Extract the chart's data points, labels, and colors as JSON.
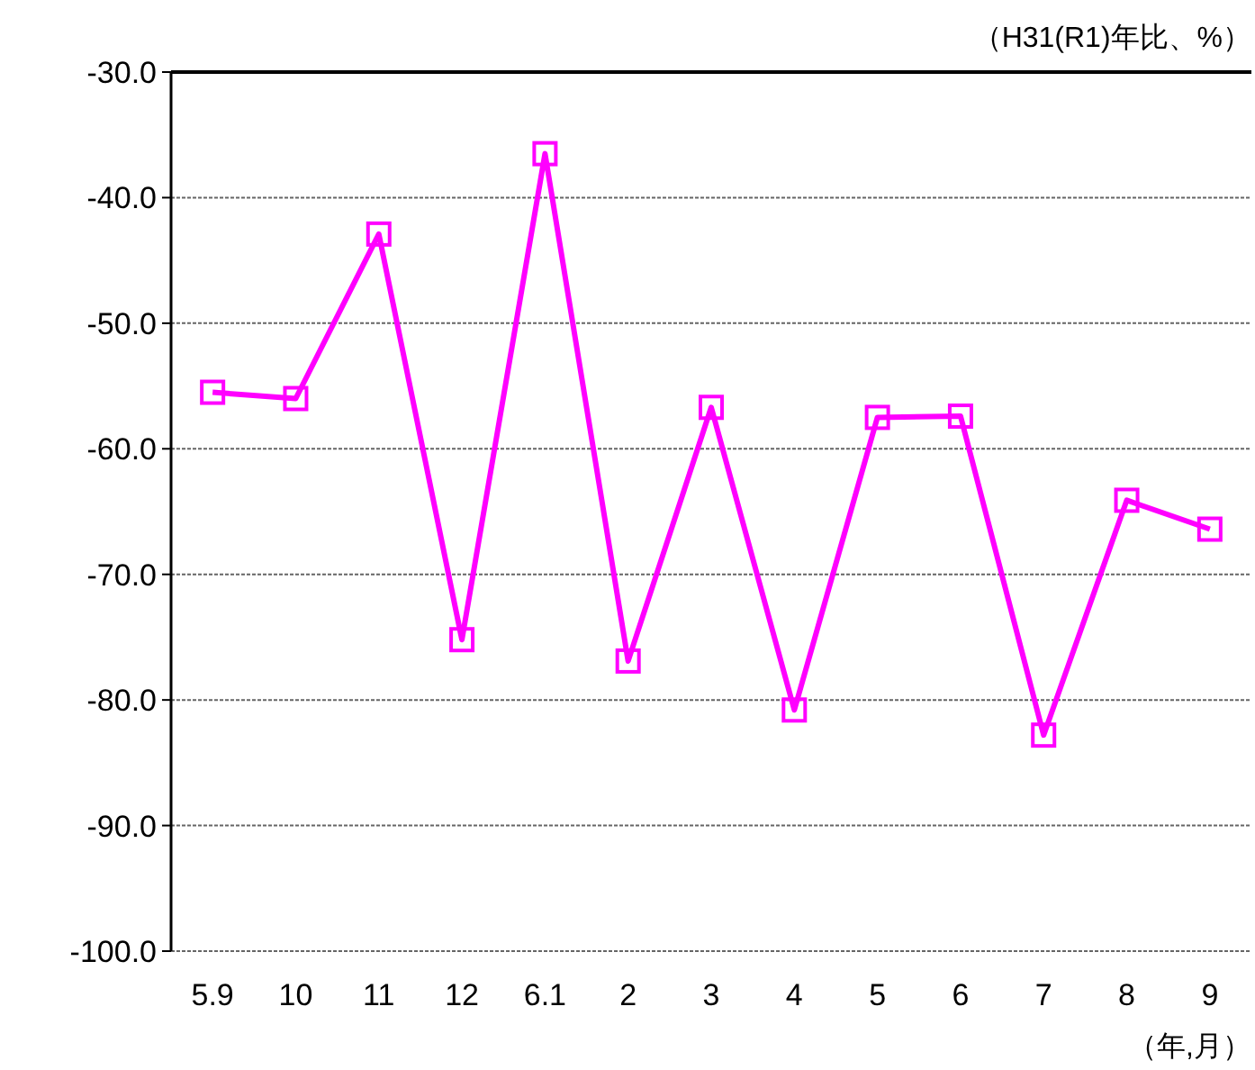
{
  "chart_data": {
    "type": "line",
    "ylabel": "（H31(R1)年比、%）",
    "xlabel": "（年,月）",
    "categories": [
      "5.9",
      "10",
      "11",
      "12",
      "6.1",
      "2",
      "3",
      "4",
      "5",
      "6",
      "7",
      "8",
      "9"
    ],
    "series": [
      {
        "color": "#ff00ff",
        "values": [
          -55.5,
          -56.0,
          -42.9,
          -75.2,
          -36.5,
          -76.9,
          -56.7,
          -80.8,
          -57.5,
          -57.4,
          -82.8,
          -64.1,
          -66.4
        ]
      }
    ],
    "ylim": [
      -100,
      -30
    ],
    "yticks": [
      {
        "value": -100,
        "label": "-100.0"
      },
      {
        "value": -90,
        "label": "-90.0"
      },
      {
        "value": -80,
        "label": "-80.0"
      },
      {
        "value": -70,
        "label": "-70.0"
      },
      {
        "value": -60,
        "label": "-60.0"
      },
      {
        "value": -50,
        "label": "-50.0"
      },
      {
        "value": -40,
        "label": "-40.0"
      },
      {
        "value": -30,
        "label": "-30.0"
      }
    ],
    "grid": "y",
    "marker": "square",
    "line_style": "solid"
  }
}
